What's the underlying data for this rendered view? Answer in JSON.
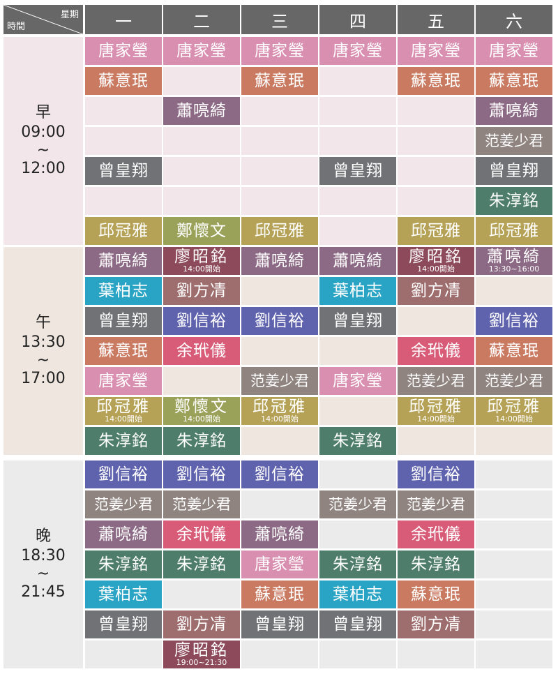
{
  "header": {
    "week_label": "星期",
    "time_label": "時間",
    "days": [
      "一",
      "二",
      "三",
      "四",
      "五",
      "六"
    ]
  },
  "colors": {
    "header": "#676767",
    "period_bg": [
      "#f2e6ea",
      "#efe7df",
      "#ebebeb"
    ],
    "names": {
      "唐家瑩": "#d98fb0",
      "蘇意珉": "#c97a60",
      "蕭喨綺": "#8c6a85",
      "范姜少君": "#8f8480",
      "曾皇翔": "#707275",
      "朱淳銘": "#4f7d6c",
      "邱冠雅": "#b5a256",
      "鄭懷文": "#9aa25a",
      "廖昭銘": "#8c4a5a",
      "葉柏志": "#2aa4c4",
      "劉方凊": "#9e6d6d",
      "劉信裕": "#5f62ad",
      "余玳儀": "#d85c78"
    }
  },
  "periods": [
    {
      "label": "早",
      "start": "09:00",
      "tilde": "~",
      "end": "12:00",
      "rows": [
        [
          {
            "name": "唐家瑩"
          },
          {
            "name": "唐家瑩"
          },
          {
            "name": "唐家瑩"
          },
          {
            "name": "唐家瑩"
          },
          {
            "name": "唐家瑩"
          },
          {
            "name": "唐家瑩"
          }
        ],
        [
          {
            "name": "蘇意珉"
          },
          null,
          {
            "name": "蘇意珉"
          },
          null,
          {
            "name": "蘇意珉"
          },
          {
            "name": "蘇意珉"
          }
        ],
        [
          null,
          {
            "name": "蕭喨綺"
          },
          null,
          null,
          null,
          {
            "name": "蕭喨綺"
          }
        ],
        [
          null,
          null,
          null,
          null,
          null,
          {
            "name": "范姜少君"
          }
        ],
        [
          {
            "name": "曾皇翔"
          },
          null,
          null,
          {
            "name": "曾皇翔"
          },
          null,
          {
            "name": "曾皇翔"
          }
        ],
        [
          null,
          null,
          null,
          null,
          null,
          {
            "name": "朱淳銘"
          }
        ],
        [
          {
            "name": "邱冠雅"
          },
          {
            "name": "鄭懷文"
          },
          {
            "name": "邱冠雅"
          },
          null,
          {
            "name": "邱冠雅"
          },
          {
            "name": "邱冠雅"
          }
        ]
      ]
    },
    {
      "label": "午",
      "start": "13:30",
      "tilde": "~",
      "end": "17:00",
      "rows": [
        [
          {
            "name": "蕭喨綺"
          },
          {
            "name": "廖昭銘",
            "note": "14:00開始"
          },
          {
            "name": "蕭喨綺"
          },
          {
            "name": "蕭喨綺"
          },
          {
            "name": "廖昭銘",
            "note": "14:00開始"
          },
          {
            "name": "蕭喨綺",
            "note": "13:30~16:00"
          }
        ],
        [
          {
            "name": "葉柏志"
          },
          {
            "name": "劉方凊"
          },
          null,
          {
            "name": "葉柏志"
          },
          {
            "name": "劉方凊"
          },
          null
        ],
        [
          {
            "name": "曾皇翔"
          },
          {
            "name": "劉信裕"
          },
          {
            "name": "劉信裕"
          },
          {
            "name": "曾皇翔"
          },
          null,
          {
            "name": "劉信裕"
          }
        ],
        [
          {
            "name": "蘇意珉"
          },
          {
            "name": "余玳儀"
          },
          null,
          null,
          {
            "name": "余玳儀"
          },
          {
            "name": "蘇意珉"
          }
        ],
        [
          {
            "name": "唐家瑩"
          },
          null,
          {
            "name": "范姜少君"
          },
          {
            "name": "唐家瑩"
          },
          {
            "name": "范姜少君"
          },
          {
            "name": "范姜少君"
          }
        ],
        [
          {
            "name": "邱冠雅",
            "note": "14:00開始"
          },
          {
            "name": "鄭懷文",
            "note": "14:00開始"
          },
          {
            "name": "邱冠雅",
            "note": "14:00開始"
          },
          null,
          {
            "name": "邱冠雅",
            "note": "14:00開始"
          },
          {
            "name": "邱冠雅",
            "note": "14:00開始"
          }
        ],
        [
          {
            "name": "朱淳銘"
          },
          {
            "name": "朱淳銘"
          },
          null,
          {
            "name": "朱淳銘"
          },
          null,
          null
        ]
      ]
    },
    {
      "label": "晚",
      "start": "18:30",
      "tilde": "~",
      "end": "21:45",
      "rows": [
        [
          {
            "name": "劉信裕"
          },
          {
            "name": "劉信裕"
          },
          {
            "name": "劉信裕"
          },
          null,
          {
            "name": "劉信裕"
          },
          null
        ],
        [
          {
            "name": "范姜少君"
          },
          {
            "name": "范姜少君"
          },
          null,
          {
            "name": "范姜少君"
          },
          {
            "name": "范姜少君"
          },
          null
        ],
        [
          {
            "name": "蕭喨綺"
          },
          {
            "name": "余玳儀"
          },
          {
            "name": "蕭喨綺"
          },
          null,
          {
            "name": "余玳儀"
          },
          null
        ],
        [
          {
            "name": "朱淳銘"
          },
          {
            "name": "朱淳銘"
          },
          {
            "name": "唐家瑩"
          },
          {
            "name": "朱淳銘"
          },
          {
            "name": "朱淳銘"
          },
          null
        ],
        [
          {
            "name": "葉柏志"
          },
          null,
          {
            "name": "蘇意珉"
          },
          {
            "name": "葉柏志"
          },
          {
            "name": "蘇意珉"
          },
          null
        ],
        [
          {
            "name": "曾皇翔"
          },
          {
            "name": "劉方凊"
          },
          {
            "name": "曾皇翔"
          },
          {
            "name": "曾皇翔"
          },
          {
            "name": "劉方凊"
          },
          null
        ],
        [
          null,
          {
            "name": "廖昭銘",
            "note": "19:00~21:30"
          },
          null,
          null,
          null,
          null
        ]
      ]
    }
  ]
}
